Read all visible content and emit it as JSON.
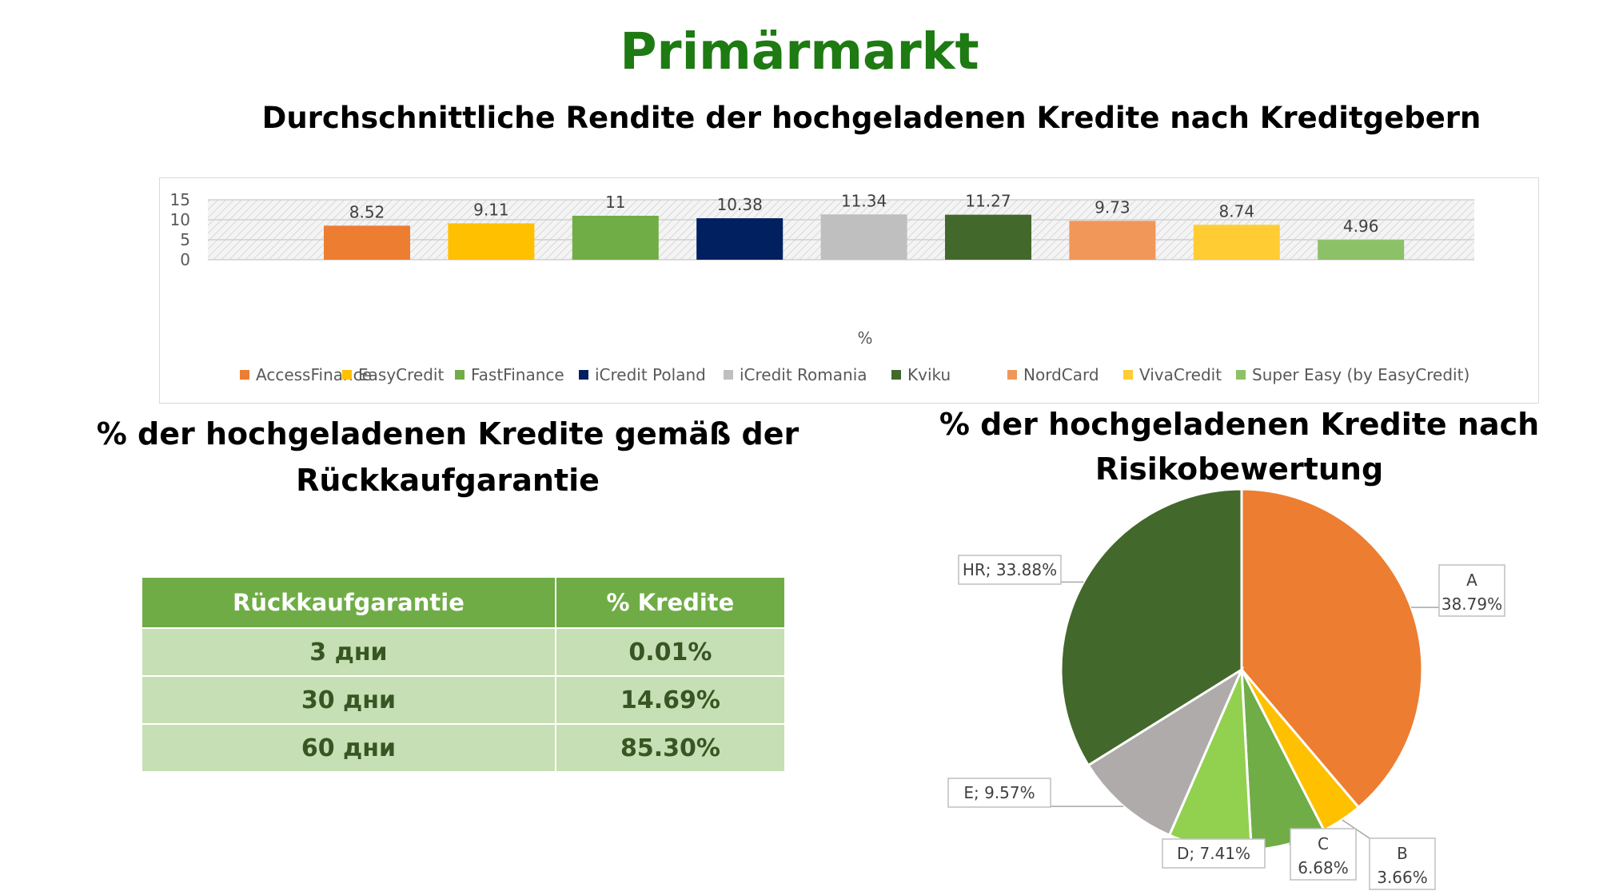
{
  "page": {
    "title": "Primärmarkt"
  },
  "bar_section": {
    "title": "Durchschnittliche Rendite der hochgeladenen Kredite nach Kreditgebern"
  },
  "table_section": {
    "title_line1": "% der hochgeladenen Kredite gemäß der",
    "title_line2": "Rückkaufgarantie",
    "headers": [
      "Rückkaufgarantie",
      "% Kredite"
    ],
    "rows": [
      [
        "3 дни",
        "0.01%"
      ],
      [
        "30 дни",
        "14.69%"
      ],
      [
        "60 дни",
        "85.30%"
      ]
    ]
  },
  "pie_section": {
    "title_line1": "% der hochgeladenen Kredite nach",
    "title_line2": "Risikobewertung"
  },
  "colors": {
    "title_green": "#1e7a12",
    "table_header": "#6fac46",
    "table_cell": "#c6dfb4",
    "table_text": "#375623"
  },
  "chart_data": [
    {
      "type": "bar",
      "title": "Durchschnittliche Rendite der hochgeladenen Kredite nach Kreditgebern",
      "xlabel": "%",
      "ylabel": "",
      "ylim": [
        0,
        15
      ],
      "yticks": [
        0,
        5,
        10,
        15
      ],
      "grid": true,
      "legend_position": "bottom",
      "series": [
        {
          "name": "AccessFinance",
          "value": 8.52,
          "label": "8.52",
          "color": "#ed7d31"
        },
        {
          "name": "EasyCredit",
          "value": 9.11,
          "label": "9.11",
          "color": "#ffc000"
        },
        {
          "name": "FastFinance",
          "value": 11,
          "label": "11",
          "color": "#70ad47"
        },
        {
          "name": "iCredit Poland",
          "value": 10.38,
          "label": "10.38",
          "color": "#002060"
        },
        {
          "name": "iCredit Romania",
          "value": 11.34,
          "label": "11.34",
          "color": "#bfbfbf"
        },
        {
          "name": "Kviku",
          "value": 11.27,
          "label": "11.27",
          "color": "#43682b"
        },
        {
          "name": "NordCard",
          "value": 9.73,
          "label": "9.73",
          "color": "#f1975a"
        },
        {
          "name": "VivaCredit",
          "value": 8.74,
          "label": "8.74",
          "color": "#ffcd33"
        },
        {
          "name": "Super Easy (by EasyCredit)",
          "value": 4.96,
          "label": "4.96",
          "color": "#8cc168"
        }
      ]
    },
    {
      "type": "pie",
      "title": "% der hochgeladenen Kredite nach Risikobewertung",
      "slices": [
        {
          "name": "A",
          "value": 38.79,
          "label": [
            "A",
            "38.79%"
          ],
          "color": "#ed7d31"
        },
        {
          "name": "B",
          "value": 3.66,
          "label": [
            "B",
            "3.66%"
          ],
          "color": "#ffc000"
        },
        {
          "name": "C",
          "value": 6.68,
          "label": [
            "C",
            "6.68%"
          ],
          "color": "#70ad47"
        },
        {
          "name": "D",
          "value": 7.41,
          "label": [
            "D; 7.41%"
          ],
          "color": "#92d050"
        },
        {
          "name": "E",
          "value": 9.57,
          "label": [
            "E; 9.57%"
          ],
          "color": "#afabab"
        },
        {
          "name": "HR",
          "value": 33.88,
          "label": [
            "HR; 33.88%"
          ],
          "color": "#43682b"
        }
      ]
    }
  ]
}
